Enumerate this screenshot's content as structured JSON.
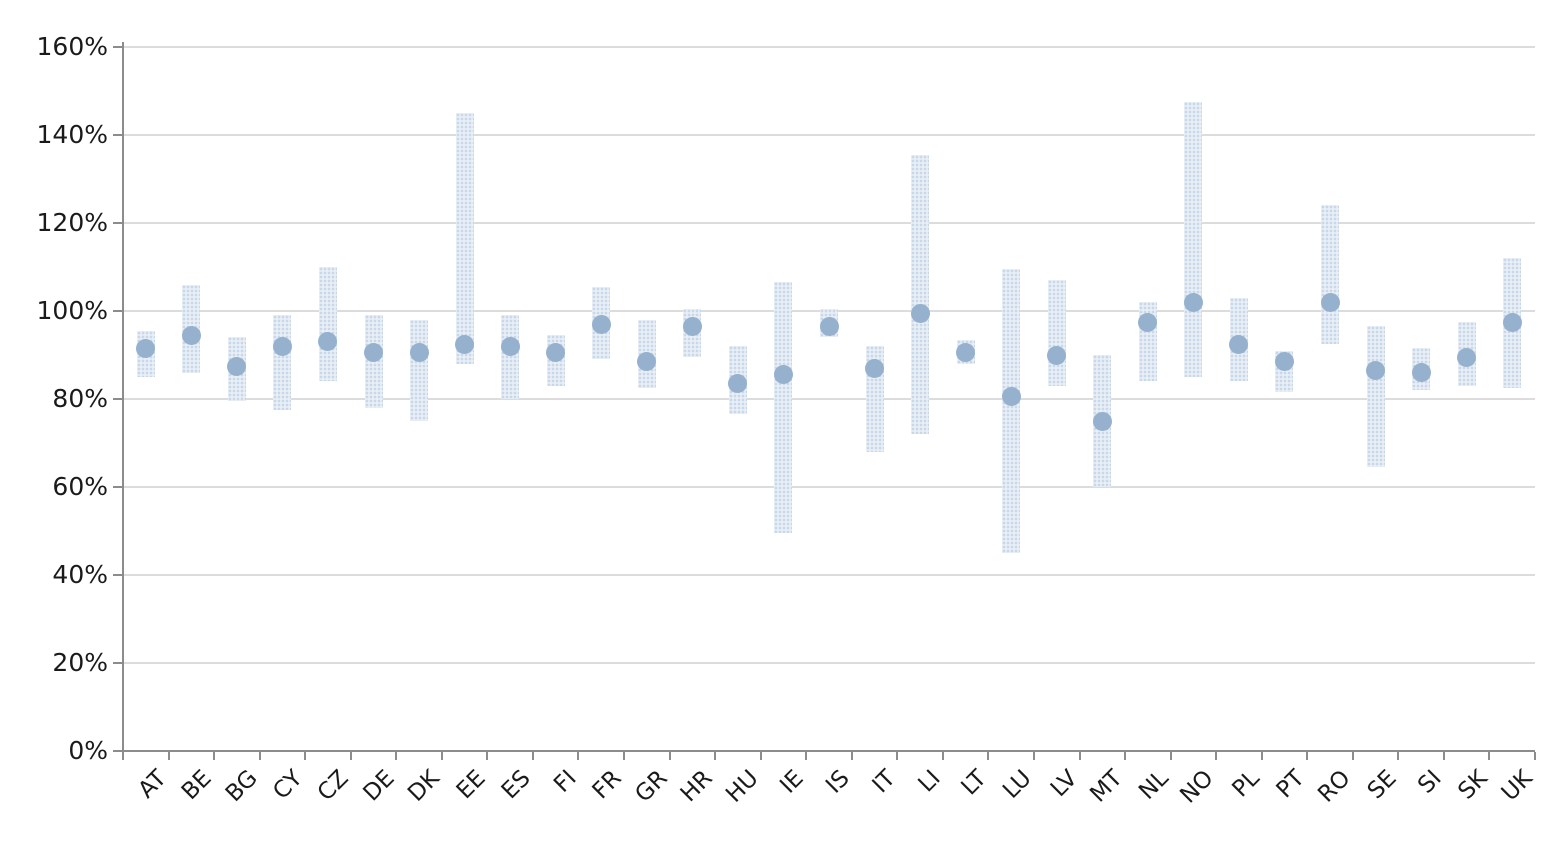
{
  "chart_data": {
    "type": "scatter",
    "subtype": "dot-with-range-bars",
    "title": "",
    "xlabel": "",
    "ylabel": "",
    "categories": [
      "AT",
      "BE",
      "BG",
      "CY",
      "CZ",
      "DE",
      "DK",
      "EE",
      "ES",
      "FI",
      "FR",
      "GR",
      "HR",
      "HU",
      "IE",
      "IS",
      "IT",
      "LI",
      "LT",
      "LU",
      "LV",
      "MT",
      "NL",
      "NO",
      "PL",
      "PT",
      "RO",
      "SE",
      "SI",
      "SK",
      "UK"
    ],
    "series": [
      {
        "name": "point_estimate_pct",
        "values": [
          91.5,
          94.5,
          87.5,
          92,
          93,
          90.5,
          90.5,
          92.5,
          92,
          90.5,
          97,
          88.5,
          96.5,
          83.5,
          85.5,
          96.5,
          87,
          99.5,
          90.5,
          80.5,
          90,
          75,
          97.5,
          102,
          92.5,
          88.5,
          102,
          86.5,
          86,
          89.5,
          97.5
        ]
      },
      {
        "name": "range_low_pct",
        "values": [
          85,
          86,
          79.5,
          77.5,
          84,
          78,
          75,
          88,
          80,
          83,
          89,
          82.5,
          89.5,
          76.5,
          49.5,
          94,
          68,
          72,
          88,
          45,
          83,
          60,
          84,
          85,
          84,
          81.5,
          92.5,
          64.5,
          82,
          83,
          82.5
        ]
      },
      {
        "name": "range_high_pct",
        "values": [
          95.5,
          106,
          94,
          99,
          110,
          99,
          98,
          145,
          99,
          94.5,
          105.5,
          98,
          100.5,
          92,
          106.5,
          100.5,
          92,
          135.5,
          93.5,
          109.5,
          107,
          90,
          102,
          147.5,
          103,
          91,
          124,
          96.5,
          91.5,
          97.5,
          112
        ]
      }
    ],
    "ylim": [
      0,
      160
    ],
    "yticks": [
      0,
      20,
      40,
      60,
      80,
      100,
      120,
      140,
      160
    ],
    "ytick_labels": [
      "0%",
      "20%",
      "40%",
      "60%",
      "80%",
      "100%",
      "120%",
      "140%",
      "160%"
    ],
    "grid": true,
    "legend": "none",
    "colors": {
      "dot": "#95b1ce",
      "bar_fill": "#e9eff5",
      "bar_pattern": "#c8d7e9",
      "gridline": "#dcdcdc",
      "axis": "#8c8c8c",
      "label": "#1a1a1a",
      "background": "#ffffff"
    }
  }
}
